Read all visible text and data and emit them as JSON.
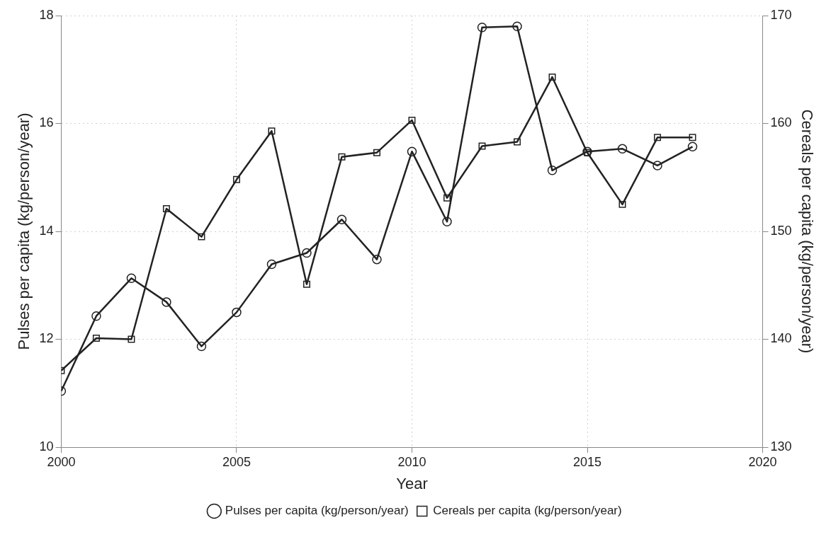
{
  "chart_data": {
    "type": "line",
    "xlabel": "Year",
    "ylabel": "Pulses per capita (kg/person/year)",
    "y2label": "Cereals per capita (kg/person/year)",
    "x": [
      2000,
      2001,
      2002,
      2003,
      2004,
      2005,
      2006,
      2007,
      2008,
      2009,
      2010,
      2011,
      2012,
      2013,
      2014,
      2015,
      2016,
      2017,
      2018
    ],
    "series": [
      {
        "name": "Pulses per capita (kg/person/year)",
        "color": "#222222",
        "marker": "circle",
        "values": [
          11.04,
          12.43,
          13.13,
          12.69,
          11.87,
          12.5,
          13.39,
          13.6,
          14.22,
          13.48,
          15.48,
          14.18,
          17.78,
          17.8,
          15.13,
          15.48,
          15.53,
          15.22,
          15.57
        ]
      },
      {
        "name": "Cereals per capita (kg/person/year)",
        "color": "#222222",
        "marker": "square",
        "axis": "y2",
        "values": [
          137.1,
          140.1,
          140.0,
          152.1,
          149.5,
          154.8,
          159.3,
          145.1,
          156.9,
          157.3,
          160.3,
          153.1,
          157.9,
          158.3,
          164.3,
          157.3,
          152.5,
          158.7,
          158.7
        ]
      }
    ],
    "xlim": [
      2000,
      2020
    ],
    "xticks": [
      2000,
      2005,
      2010,
      2015,
      2020
    ],
    "ylim": [
      10,
      18
    ],
    "yticks": [
      10,
      12,
      14,
      16,
      18
    ],
    "y2lim": [
      130,
      170
    ],
    "y2ticks": [
      130,
      140,
      150,
      160,
      170
    ],
    "grid": true,
    "legend": "bottom",
    "line_style": "solid"
  }
}
